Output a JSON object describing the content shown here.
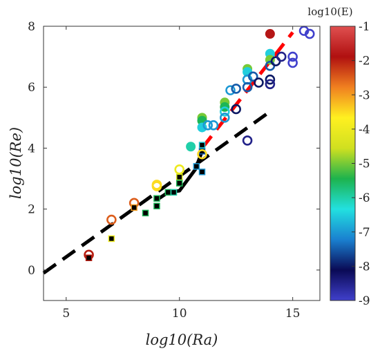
{
  "chart_data": {
    "type": "scatter",
    "xlabel": "log10(Ra)",
    "ylabel": "log10(Re)",
    "xlim": [
      4,
      16.2
    ],
    "ylim": [
      -1,
      8
    ],
    "xticks": [
      5,
      10,
      15
    ],
    "yticks": [
      0,
      2,
      4,
      6,
      8
    ],
    "grid": false,
    "colorbar": {
      "title": "log10(E)",
      "range": [
        -9,
        -1
      ],
      "ticks": [
        -1,
        -2,
        -3,
        -4,
        -5,
        -6,
        -7,
        -8,
        -9
      ],
      "colormap": [
        "#4040cc",
        "#0a0a55",
        "#1a80d0",
        "#22e0e0",
        "#1db34d",
        "#d0e020",
        "#fff020",
        "#f08020",
        "#b01010",
        "#e05050"
      ]
    },
    "lines": [
      {
        "style": "dashed",
        "color": "#000000",
        "points": [
          [
            4.0,
            -0.1
          ],
          [
            14.0,
            5.2
          ]
        ]
      },
      {
        "style": "solid",
        "color": "#000000",
        "points": [
          [
            9.0,
            2.3
          ],
          [
            9.5,
            2.55
          ],
          [
            10.0,
            2.6
          ],
          [
            10.7,
            3.3
          ],
          [
            11.0,
            3.9
          ]
        ]
      },
      {
        "style": "dashed",
        "color": "#ff0000",
        "points": [
          [
            11.0,
            4.0
          ],
          [
            15.0,
            7.8
          ]
        ]
      }
    ],
    "points": [
      {
        "x": 6.0,
        "y": 0.5,
        "logE": -2,
        "marker": "open-circle"
      },
      {
        "x": 6.0,
        "y": 0.4,
        "logE": -2,
        "marker": "square"
      },
      {
        "x": 7.0,
        "y": 1.65,
        "logE": -2.5,
        "marker": "open-circle"
      },
      {
        "x": 7.0,
        "y": 1.03,
        "logE": -4,
        "marker": "square"
      },
      {
        "x": 8.0,
        "y": 2.2,
        "logE": -2.5,
        "marker": "open-circle"
      },
      {
        "x": 8.0,
        "y": 2.05,
        "logE": -3,
        "marker": "square"
      },
      {
        "x": 8.5,
        "y": 1.87,
        "logE": -5.5,
        "marker": "square"
      },
      {
        "x": 9.0,
        "y": 2.8,
        "logE": -3.5,
        "marker": "open-circle"
      },
      {
        "x": 9.0,
        "y": 2.75,
        "logE": -3.5,
        "marker": "open-circle"
      },
      {
        "x": 9.0,
        "y": 2.1,
        "logE": -5.5,
        "marker": "square"
      },
      {
        "x": 9.0,
        "y": 2.35,
        "logE": -5.5,
        "marker": "square"
      },
      {
        "x": 9.5,
        "y": 2.55,
        "logE": -5.5,
        "marker": "square"
      },
      {
        "x": 9.75,
        "y": 2.55,
        "logE": -6,
        "marker": "square"
      },
      {
        "x": 10.0,
        "y": 3.3,
        "logE": -4,
        "marker": "open-circle"
      },
      {
        "x": 10.0,
        "y": 3.05,
        "logE": -4.5,
        "marker": "square"
      },
      {
        "x": 10.0,
        "y": 2.85,
        "logE": -5.5,
        "marker": "square"
      },
      {
        "x": 10.5,
        "y": 4.05,
        "logE": -6,
        "marker": "filled-circle"
      },
      {
        "x": 10.75,
        "y": 3.4,
        "logE": -7,
        "marker": "square"
      },
      {
        "x": 11.0,
        "y": 3.9,
        "logE": -7.5,
        "marker": "square"
      },
      {
        "x": 11.0,
        "y": 3.8,
        "logE": -3.5,
        "marker": "open-circle"
      },
      {
        "x": 11.0,
        "y": 3.22,
        "logE": -7,
        "marker": "square"
      },
      {
        "x": 11.0,
        "y": 4.1,
        "logE": -6.5,
        "marker": "square"
      },
      {
        "x": 11.0,
        "y": 5.0,
        "logE": -5,
        "marker": "filled-circle"
      },
      {
        "x": 11.0,
        "y": 4.9,
        "logE": -5.5,
        "marker": "filled-circle"
      },
      {
        "x": 11.0,
        "y": 4.68,
        "logE": -6.5,
        "marker": "filled-circle"
      },
      {
        "x": 11.25,
        "y": 4.75,
        "logE": -7,
        "marker": "open-circle"
      },
      {
        "x": 11.5,
        "y": 4.75,
        "logE": -7,
        "marker": "open-circle"
      },
      {
        "x": 12.0,
        "y": 5.5,
        "logE": -5,
        "marker": "filled-circle"
      },
      {
        "x": 12.0,
        "y": 5.35,
        "logE": -5.5,
        "marker": "filled-circle"
      },
      {
        "x": 12.0,
        "y": 5.2,
        "logE": -6.5,
        "marker": "open-circle"
      },
      {
        "x": 12.0,
        "y": 5.0,
        "logE": -7,
        "marker": "open-circle"
      },
      {
        "x": 12.25,
        "y": 5.9,
        "logE": -7,
        "marker": "open-circle"
      },
      {
        "x": 12.5,
        "y": 5.95,
        "logE": -7.5,
        "marker": "open-circle"
      },
      {
        "x": 12.5,
        "y": 5.28,
        "logE": -8,
        "marker": "open-circle"
      },
      {
        "x": 13.0,
        "y": 6.6,
        "logE": -5,
        "marker": "filled-circle"
      },
      {
        "x": 13.0,
        "y": 6.5,
        "logE": -6.5,
        "marker": "filled-circle"
      },
      {
        "x": 13.0,
        "y": 6.25,
        "logE": -7,
        "marker": "open-circle"
      },
      {
        "x": 13.0,
        "y": 6.0,
        "logE": -7.5,
        "marker": "open-circle"
      },
      {
        "x": 13.0,
        "y": 4.25,
        "logE": -8.5,
        "marker": "open-circle"
      },
      {
        "x": 13.25,
        "y": 6.35,
        "logE": -7.5,
        "marker": "open-circle"
      },
      {
        "x": 13.5,
        "y": 6.15,
        "logE": -8,
        "marker": "open-circle"
      },
      {
        "x": 14.0,
        "y": 7.75,
        "logE": -1.8,
        "marker": "filled-circle"
      },
      {
        "x": 14.0,
        "y": 7.1,
        "logE": -6.5,
        "marker": "filled-circle"
      },
      {
        "x": 14.0,
        "y": 6.9,
        "logE": -5,
        "marker": "filled-circle"
      },
      {
        "x": 14.0,
        "y": 6.7,
        "logE": -7.5,
        "marker": "open-circle"
      },
      {
        "x": 14.0,
        "y": 6.25,
        "logE": -8,
        "marker": "open-circle"
      },
      {
        "x": 14.0,
        "y": 6.1,
        "logE": -8.5,
        "marker": "open-circle"
      },
      {
        "x": 14.25,
        "y": 6.85,
        "logE": -8,
        "marker": "open-circle"
      },
      {
        "x": 14.5,
        "y": 7.0,
        "logE": -8.5,
        "marker": "open-circle"
      },
      {
        "x": 15.0,
        "y": 7.0,
        "logE": -9,
        "marker": "open-circle"
      },
      {
        "x": 15.0,
        "y": 6.8,
        "logE": -9,
        "marker": "open-circle"
      },
      {
        "x": 15.5,
        "y": 7.85,
        "logE": -9,
        "marker": "open-circle"
      },
      {
        "x": 15.75,
        "y": 7.75,
        "logE": -9,
        "marker": "open-circle"
      }
    ]
  }
}
